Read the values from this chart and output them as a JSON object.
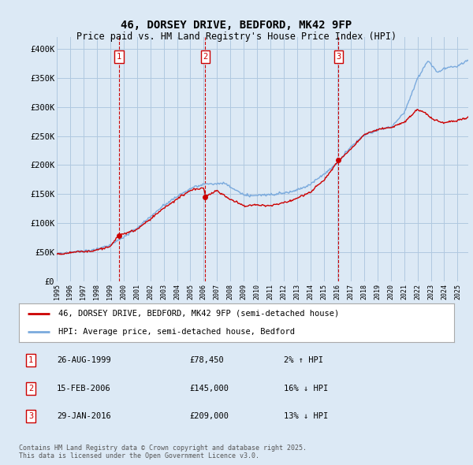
{
  "title": "46, DORSEY DRIVE, BEDFORD, MK42 9FP",
  "subtitle": "Price paid vs. HM Land Registry's House Price Index (HPI)",
  "legend_line1": "46, DORSEY DRIVE, BEDFORD, MK42 9FP (semi-detached house)",
  "legend_line2": "HPI: Average price, semi-detached house, Bedford",
  "transaction1_date": "26-AUG-1999",
  "transaction1_price": "£78,450",
  "transaction1_hpi": "2% ↑ HPI",
  "transaction1_year": 1999.65,
  "transaction1_value": 78450,
  "transaction2_date": "15-FEB-2006",
  "transaction2_price": "£145,000",
  "transaction2_hpi": "16% ↓ HPI",
  "transaction2_year": 2006.12,
  "transaction2_value": 145000,
  "transaction3_date": "29-JAN-2016",
  "transaction3_price": "£209,000",
  "transaction3_hpi": "13% ↓ HPI",
  "transaction3_year": 2016.08,
  "transaction3_value": 209000,
  "price_color": "#cc0000",
  "hpi_color": "#7aaadd",
  "background_color": "#dce9f5",
  "plot_bg_color": "#dce9f5",
  "grid_color": "#b0c8e0",
  "annotation_color": "#cc0000",
  "ylim": [
    0,
    420000
  ],
  "xlim_start": 1995,
  "xlim_end": 2025.8,
  "yticks": [
    0,
    50000,
    100000,
    150000,
    200000,
    250000,
    300000,
    350000,
    400000
  ],
  "ylabels": [
    "£0",
    "£50K",
    "£100K",
    "£150K",
    "£200K",
    "£250K",
    "£300K",
    "£350K",
    "£400K"
  ],
  "footnote": "Contains HM Land Registry data © Crown copyright and database right 2025.\nThis data is licensed under the Open Government Licence v3.0."
}
